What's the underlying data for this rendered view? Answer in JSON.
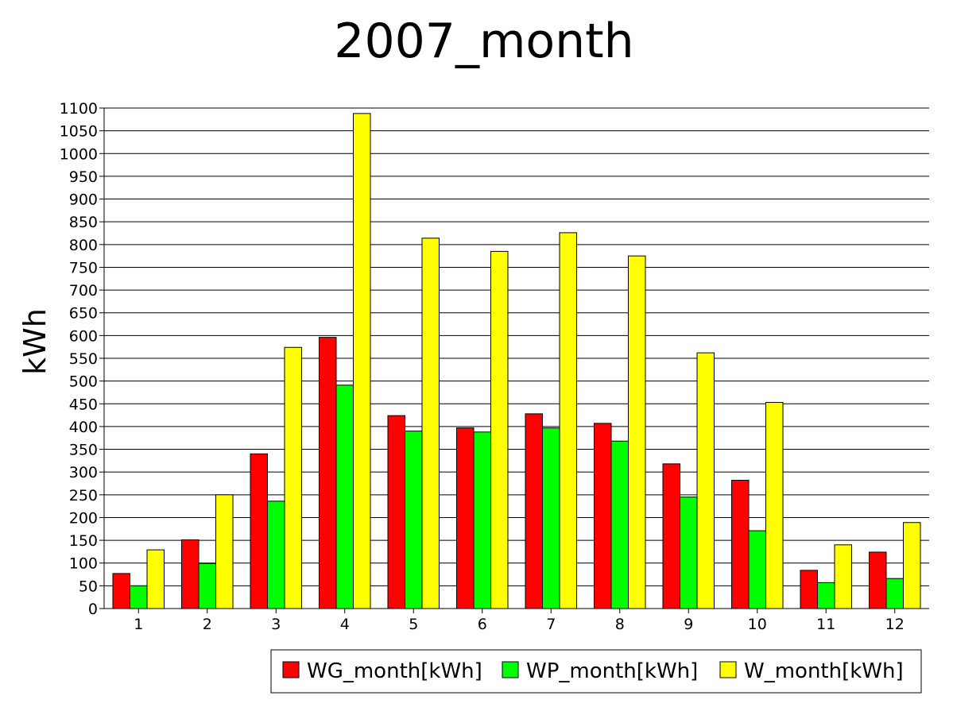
{
  "chart_data": {
    "type": "bar",
    "title": "2007_month",
    "xlabel": "",
    "ylabel": "kWh",
    "ylim": [
      0,
      1100
    ],
    "ytick_step": 50,
    "grid": "horizontal",
    "legend_position": "bottom-right",
    "categories": [
      "1",
      "2",
      "3",
      "4",
      "5",
      "6",
      "7",
      "8",
      "9",
      "10",
      "11",
      "12"
    ],
    "series": [
      {
        "name": "WG_month[kWh]",
        "color": "#ff0000",
        "values": [
          77,
          151,
          340,
          596,
          424,
          397,
          428,
          407,
          318,
          282,
          84,
          124
        ]
      },
      {
        "name": "WP_month[kWh]",
        "color": "#00ff00",
        "values": [
          50,
          99,
          236,
          491,
          390,
          388,
          397,
          368,
          245,
          171,
          57,
          66
        ]
      },
      {
        "name": "W_month[kWh]",
        "color": "#ffff00",
        "values": [
          129,
          250,
          574,
          1088,
          814,
          785,
          826,
          775,
          562,
          453,
          140,
          189
        ]
      }
    ]
  }
}
